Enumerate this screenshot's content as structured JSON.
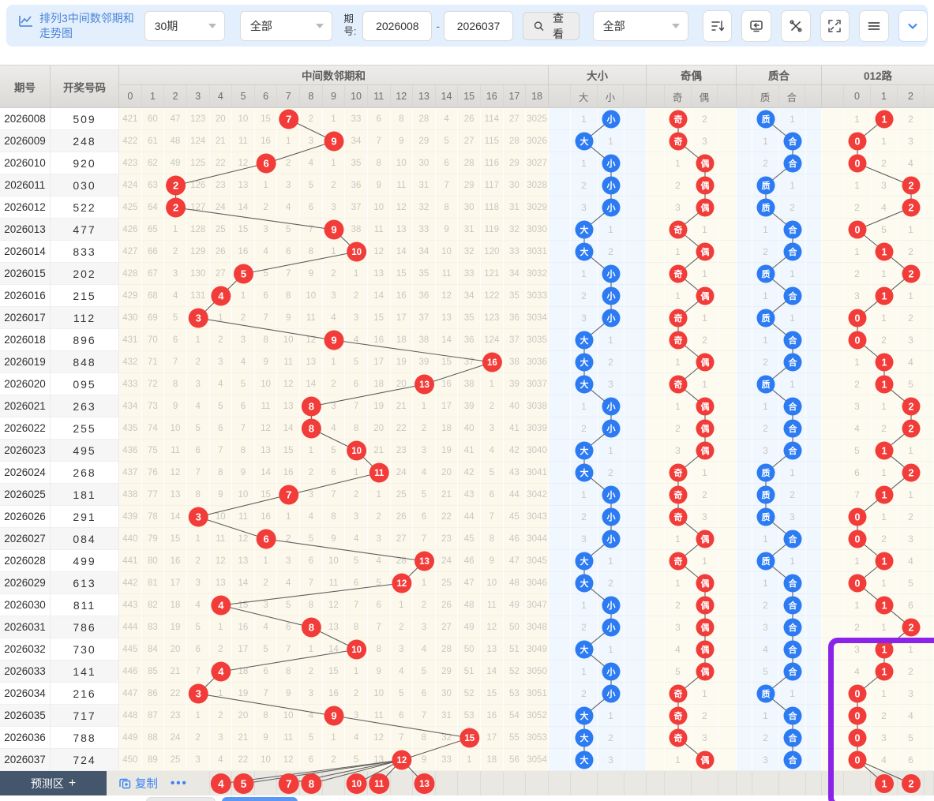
{
  "toolbar": {
    "title_line1": "排列3中间数邻期和",
    "title_line2": "走势图",
    "periods_select": "30期",
    "filter_select": "全部",
    "period_label_line1": "期",
    "period_label_line2": "号:",
    "period_from": "2026008",
    "period_to": "2026037",
    "range_dash": "-",
    "view_button": "查看",
    "filter_select_2": "全部"
  },
  "header": {
    "period": "期号",
    "number": "开奖号码",
    "sum_group": "中间数邻期和",
    "sum_cols": [
      "0",
      "1",
      "2",
      "3",
      "4",
      "5",
      "6",
      "7",
      "8",
      "9",
      "10",
      "11",
      "12",
      "13",
      "14",
      "15",
      "16",
      "17",
      "18"
    ],
    "dx_group": "大小",
    "dx_cols": [
      "大",
      "小"
    ],
    "qo_group": "奇偶",
    "qo_cols": [
      "奇",
      "偶"
    ],
    "zh_group": "质合",
    "zh_cols": [
      "质",
      "合"
    ],
    "road_group": "012路",
    "road_cols": [
      "0",
      "1",
      "2"
    ]
  },
  "rows": [
    {
      "period": "2026008",
      "num": "509",
      "hit": 7,
      "miss": [
        421,
        60,
        47,
        123,
        20,
        10,
        15,
        7,
        2,
        1,
        33,
        6,
        8,
        28,
        4,
        26,
        114,
        27,
        3025
      ],
      "dx": [
        "1",
        "*小"
      ],
      "qo": [
        "*奇",
        "2"
      ],
      "zh": [
        "*质",
        "1"
      ],
      "road": [
        "1",
        "*1",
        "2"
      ]
    },
    {
      "period": "2026009",
      "num": "248",
      "hit": 9,
      "miss": [
        422,
        61,
        48,
        124,
        21,
        11,
        16,
        1,
        3,
        9,
        34,
        7,
        9,
        29,
        5,
        27,
        115,
        28,
        3026
      ],
      "dx": [
        "*大",
        "1"
      ],
      "qo": [
        "*奇",
        "3"
      ],
      "zh": [
        "1",
        "*合"
      ],
      "road": [
        "*0",
        "1",
        "3"
      ]
    },
    {
      "period": "2026010",
      "num": "920",
      "hit": 6,
      "miss": [
        423,
        62,
        49,
        125,
        22,
        12,
        6,
        2,
        4,
        1,
        35,
        8,
        10,
        30,
        6,
        28,
        116,
        29,
        3027
      ],
      "dx": [
        "1",
        "*小"
      ],
      "qo": [
        "1",
        "*偶"
      ],
      "zh": [
        "2",
        "*合"
      ],
      "road": [
        "*0",
        "2",
        "4"
      ]
    },
    {
      "period": "2026011",
      "num": "030",
      "hit": 2,
      "miss": [
        424,
        63,
        2,
        126,
        23,
        13,
        1,
        3,
        5,
        2,
        36,
        9,
        11,
        31,
        7,
        29,
        117,
        30,
        3028
      ],
      "dx": [
        "2",
        "*小"
      ],
      "qo": [
        "2",
        "*偶"
      ],
      "zh": [
        "*质",
        "1"
      ],
      "road": [
        "1",
        "3",
        "*2"
      ]
    },
    {
      "period": "2026012",
      "num": "522",
      "hit": 2,
      "miss": [
        425,
        64,
        2,
        127,
        24,
        14,
        2,
        4,
        6,
        3,
        37,
        10,
        12,
        32,
        8,
        30,
        118,
        31,
        3029
      ],
      "dx": [
        "3",
        "*小"
      ],
      "qo": [
        "3",
        "*偶"
      ],
      "zh": [
        "*质",
        "2"
      ],
      "road": [
        "2",
        "4",
        "*2"
      ]
    },
    {
      "period": "2026013",
      "num": "477",
      "hit": 9,
      "miss": [
        426,
        65,
        1,
        128,
        25,
        15,
        3,
        5,
        7,
        9,
        38,
        11,
        13,
        33,
        9,
        31,
        119,
        32,
        3030
      ],
      "dx": [
        "*大",
        "1"
      ],
      "qo": [
        "*奇",
        "1"
      ],
      "zh": [
        "1",
        "*合"
      ],
      "road": [
        "*0",
        "5",
        "1"
      ]
    },
    {
      "period": "2026014",
      "num": "833",
      "hit": 10,
      "miss": [
        427,
        66,
        2,
        129,
        26,
        16,
        4,
        6,
        8,
        1,
        10,
        12,
        14,
        34,
        10,
        32,
        120,
        33,
        3031
      ],
      "dx": [
        "*大",
        "2"
      ],
      "qo": [
        "1",
        "*偶"
      ],
      "zh": [
        "2",
        "*合"
      ],
      "road": [
        "1",
        "*1",
        "2"
      ]
    },
    {
      "period": "2026015",
      "num": "202",
      "hit": 5,
      "miss": [
        428,
        67,
        3,
        130,
        27,
        5,
        5,
        7,
        9,
        2,
        1,
        13,
        15,
        35,
        11,
        33,
        121,
        34,
        3032
      ],
      "dx": [
        "1",
        "*小"
      ],
      "qo": [
        "*奇",
        "1"
      ],
      "zh": [
        "*质",
        "1"
      ],
      "road": [
        "2",
        "1",
        "*2"
      ]
    },
    {
      "period": "2026016",
      "num": "215",
      "hit": 4,
      "miss": [
        429,
        68,
        4,
        131,
        4,
        1,
        6,
        8,
        10,
        3,
        2,
        14,
        16,
        36,
        12,
        34,
        122,
        35,
        3033
      ],
      "dx": [
        "2",
        "*小"
      ],
      "qo": [
        "1",
        "*偶"
      ],
      "zh": [
        "1",
        "*合"
      ],
      "road": [
        "3",
        "*1",
        "1"
      ]
    },
    {
      "period": "2026017",
      "num": "112",
      "hit": 3,
      "miss": [
        430,
        69,
        5,
        3,
        1,
        2,
        7,
        9,
        11,
        4,
        3,
        15,
        17,
        37,
        13,
        35,
        123,
        36,
        3034
      ],
      "dx": [
        "3",
        "*小"
      ],
      "qo": [
        "*奇",
        "1"
      ],
      "zh": [
        "*质",
        "1"
      ],
      "road": [
        "*0",
        "1",
        "2"
      ]
    },
    {
      "period": "2026018",
      "num": "896",
      "hit": 9,
      "miss": [
        431,
        70,
        6,
        1,
        2,
        3,
        8,
        10,
        12,
        9,
        4,
        16,
        18,
        38,
        14,
        36,
        124,
        37,
        3035
      ],
      "dx": [
        "*大",
        "1"
      ],
      "qo": [
        "*奇",
        "2"
      ],
      "zh": [
        "1",
        "*合"
      ],
      "road": [
        "*0",
        "2",
        "3"
      ]
    },
    {
      "period": "2026019",
      "num": "848",
      "hit": 16,
      "miss": [
        432,
        71,
        7,
        2,
        3,
        4,
        9,
        11,
        13,
        1,
        5,
        17,
        19,
        39,
        15,
        37,
        16,
        38,
        3036
      ],
      "dx": [
        "*大",
        "2"
      ],
      "qo": [
        "1",
        "*偶"
      ],
      "zh": [
        "2",
        "*合"
      ],
      "road": [
        "1",
        "*1",
        "4"
      ]
    },
    {
      "period": "2026020",
      "num": "095",
      "hit": 13,
      "miss": [
        433,
        72,
        8,
        3,
        4,
        5,
        10,
        12,
        14,
        2,
        6,
        18,
        20,
        13,
        16,
        38,
        1,
        39,
        3037
      ],
      "dx": [
        "*大",
        "3"
      ],
      "qo": [
        "*奇",
        "1"
      ],
      "zh": [
        "*质",
        "1"
      ],
      "road": [
        "2",
        "*1",
        "5"
      ]
    },
    {
      "period": "2026021",
      "num": "263",
      "hit": 8,
      "miss": [
        434,
        73,
        9,
        4,
        5,
        6,
        11,
        13,
        8,
        3,
        7,
        19,
        21,
        1,
        17,
        39,
        2,
        40,
        3038
      ],
      "dx": [
        "1",
        "*小"
      ],
      "qo": [
        "1",
        "*偶"
      ],
      "zh": [
        "1",
        "*合"
      ],
      "road": [
        "3",
        "1",
        "*2"
      ]
    },
    {
      "period": "2026022",
      "num": "255",
      "hit": 8,
      "miss": [
        435,
        74,
        10,
        5,
        6,
        7,
        12,
        14,
        8,
        4,
        8,
        20,
        22,
        2,
        18,
        40,
        3,
        41,
        3039
      ],
      "dx": [
        "2",
        "*小"
      ],
      "qo": [
        "2",
        "*偶"
      ],
      "zh": [
        "2",
        "*合"
      ],
      "road": [
        "4",
        "2",
        "*2"
      ]
    },
    {
      "period": "2026023",
      "num": "495",
      "hit": 10,
      "miss": [
        436,
        75,
        11,
        6,
        7,
        8,
        13,
        15,
        1,
        5,
        10,
        21,
        23,
        3,
        19,
        41,
        4,
        42,
        3040
      ],
      "dx": [
        "*大",
        "1"
      ],
      "qo": [
        "3",
        "*偶"
      ],
      "zh": [
        "3",
        "*合"
      ],
      "road": [
        "5",
        "*1",
        "1"
      ]
    },
    {
      "period": "2026024",
      "num": "268",
      "hit": 11,
      "miss": [
        437,
        76,
        12,
        7,
        8,
        9,
        14,
        16,
        2,
        6,
        1,
        11,
        24,
        4,
        20,
        42,
        5,
        43,
        3041
      ],
      "dx": [
        "*大",
        "2"
      ],
      "qo": [
        "*奇",
        "1"
      ],
      "zh": [
        "*质",
        "1"
      ],
      "road": [
        "6",
        "1",
        "*2"
      ]
    },
    {
      "period": "2026025",
      "num": "181",
      "hit": 7,
      "miss": [
        438,
        77,
        13,
        8,
        9,
        10,
        15,
        7,
        3,
        7,
        2,
        1,
        25,
        5,
        21,
        43,
        6,
        44,
        3042
      ],
      "dx": [
        "1",
        "*小"
      ],
      "qo": [
        "*奇",
        "2"
      ],
      "zh": [
        "*质",
        "2"
      ],
      "road": [
        "7",
        "*1",
        "1"
      ]
    },
    {
      "period": "2026026",
      "num": "291",
      "hit": 3,
      "miss": [
        439,
        78,
        14,
        3,
        10,
        11,
        16,
        1,
        4,
        8,
        3,
        2,
        26,
        6,
        22,
        44,
        7,
        45,
        3043
      ],
      "dx": [
        "2",
        "*小"
      ],
      "qo": [
        "*奇",
        "3"
      ],
      "zh": [
        "*质",
        "3"
      ],
      "road": [
        "*0",
        "1",
        "2"
      ]
    },
    {
      "period": "2026027",
      "num": "084",
      "hit": 6,
      "miss": [
        440,
        79,
        15,
        1,
        11,
        12,
        6,
        2,
        5,
        9,
        4,
        3,
        27,
        7,
        23,
        45,
        8,
        46,
        3044
      ],
      "dx": [
        "3",
        "*小"
      ],
      "qo": [
        "1",
        "*偶"
      ],
      "zh": [
        "1",
        "*合"
      ],
      "road": [
        "*0",
        "2",
        "3"
      ]
    },
    {
      "period": "2026028",
      "num": "499",
      "hit": 13,
      "miss": [
        441,
        80,
        16,
        2,
        12,
        13,
        1,
        3,
        6,
        10,
        5,
        4,
        28,
        13,
        24,
        46,
        9,
        47,
        3045
      ],
      "dx": [
        "*大",
        "1"
      ],
      "qo": [
        "*奇",
        "1"
      ],
      "zh": [
        "*质",
        "1"
      ],
      "road": [
        "1",
        "*1",
        "4"
      ]
    },
    {
      "period": "2026029",
      "num": "613",
      "hit": 12,
      "miss": [
        442,
        81,
        17,
        3,
        13,
        14,
        2,
        4,
        7,
        11,
        6,
        5,
        12,
        1,
        25,
        47,
        10,
        48,
        3046
      ],
      "dx": [
        "*大",
        "2"
      ],
      "qo": [
        "1",
        "*偶"
      ],
      "zh": [
        "1",
        "*合"
      ],
      "road": [
        "*0",
        "1",
        "5"
      ]
    },
    {
      "period": "2026030",
      "num": "811",
      "hit": 4,
      "miss": [
        443,
        82,
        18,
        4,
        4,
        15,
        3,
        5,
        8,
        12,
        7,
        6,
        1,
        2,
        26,
        48,
        11,
        49,
        3047
      ],
      "dx": [
        "1",
        "*小"
      ],
      "qo": [
        "2",
        "*偶"
      ],
      "zh": [
        "2",
        "*合"
      ],
      "road": [
        "1",
        "*1",
        "6"
      ]
    },
    {
      "period": "2026031",
      "num": "786",
      "hit": 8,
      "miss": [
        444,
        83,
        19,
        5,
        1,
        16,
        4,
        6,
        8,
        13,
        8,
        7,
        2,
        3,
        27,
        49,
        12,
        50,
        3048
      ],
      "dx": [
        "2",
        "*小"
      ],
      "qo": [
        "3",
        "*偶"
      ],
      "zh": [
        "3",
        "*合"
      ],
      "road": [
        "2",
        "1",
        "*2"
      ]
    },
    {
      "period": "2026032",
      "num": "730",
      "hit": 10,
      "miss": [
        445,
        84,
        20,
        6,
        2,
        17,
        5,
        7,
        1,
        14,
        10,
        8,
        3,
        4,
        28,
        50,
        13,
        51,
        3049
      ],
      "dx": [
        "*大",
        "1"
      ],
      "qo": [
        "4",
        "*偶"
      ],
      "zh": [
        "4",
        "*合"
      ],
      "road": [
        "3",
        "*1",
        "1"
      ]
    },
    {
      "period": "2026033",
      "num": "141",
      "hit": 4,
      "miss": [
        446,
        85,
        21,
        7,
        4,
        18,
        6,
        8,
        2,
        15,
        1,
        9,
        4,
        5,
        29,
        51,
        14,
        52,
        3050
      ],
      "dx": [
        "1",
        "*小"
      ],
      "qo": [
        "5",
        "*偶"
      ],
      "zh": [
        "5",
        "*合"
      ],
      "road": [
        "4",
        "*1",
        "2"
      ]
    },
    {
      "period": "2026034",
      "num": "216",
      "hit": 3,
      "miss": [
        447,
        86,
        22,
        3,
        1,
        19,
        7,
        9,
        3,
        16,
        2,
        10,
        5,
        6,
        30,
        52,
        15,
        53,
        3051
      ],
      "dx": [
        "2",
        "*小"
      ],
      "qo": [
        "*奇",
        "1"
      ],
      "zh": [
        "*质",
        "1"
      ],
      "road": [
        "*0",
        "1",
        "3"
      ]
    },
    {
      "period": "2026035",
      "num": "717",
      "hit": 9,
      "miss": [
        448,
        87,
        23,
        1,
        2,
        20,
        8,
        10,
        4,
        9,
        3,
        11,
        6,
        7,
        31,
        53,
        16,
        54,
        3052
      ],
      "dx": [
        "*大",
        "1"
      ],
      "qo": [
        "*奇",
        "2"
      ],
      "zh": [
        "1",
        "*合"
      ],
      "road": [
        "*0",
        "2",
        "4"
      ]
    },
    {
      "period": "2026036",
      "num": "788",
      "hit": 15,
      "miss": [
        449,
        88,
        24,
        2,
        3,
        21,
        9,
        11,
        5,
        1,
        4,
        12,
        7,
        8,
        32,
        15,
        17,
        55,
        3053
      ],
      "dx": [
        "*大",
        "2"
      ],
      "qo": [
        "*奇",
        "3"
      ],
      "zh": [
        "2",
        "*合"
      ],
      "road": [
        "*0",
        "3",
        "5"
      ]
    },
    {
      "period": "2026037",
      "num": "724",
      "hit": 12,
      "miss": [
        450,
        89,
        25,
        3,
        4,
        22,
        10,
        12,
        6,
        2,
        5,
        13,
        12,
        9,
        33,
        1,
        18,
        56,
        3054
      ],
      "dx": [
        "*大",
        "3"
      ],
      "qo": [
        "1",
        "*偶"
      ],
      "zh": [
        "3",
        "*合"
      ],
      "road": [
        "*0",
        "4",
        "6"
      ]
    }
  ],
  "prediction": {
    "area_label": "预测区",
    "plus": "+",
    "copy_label": "复制",
    "more_label": "•••",
    "sum_values": [
      4,
      5,
      7,
      8,
      10,
      11,
      13
    ],
    "road_values": [
      1,
      2
    ]
  },
  "colors": {
    "hit_red": "#f23c39",
    "hit_blue": "#2c7bf2",
    "line_gray": "#5d5d5d",
    "selection_purple": "#8b24e8"
  }
}
